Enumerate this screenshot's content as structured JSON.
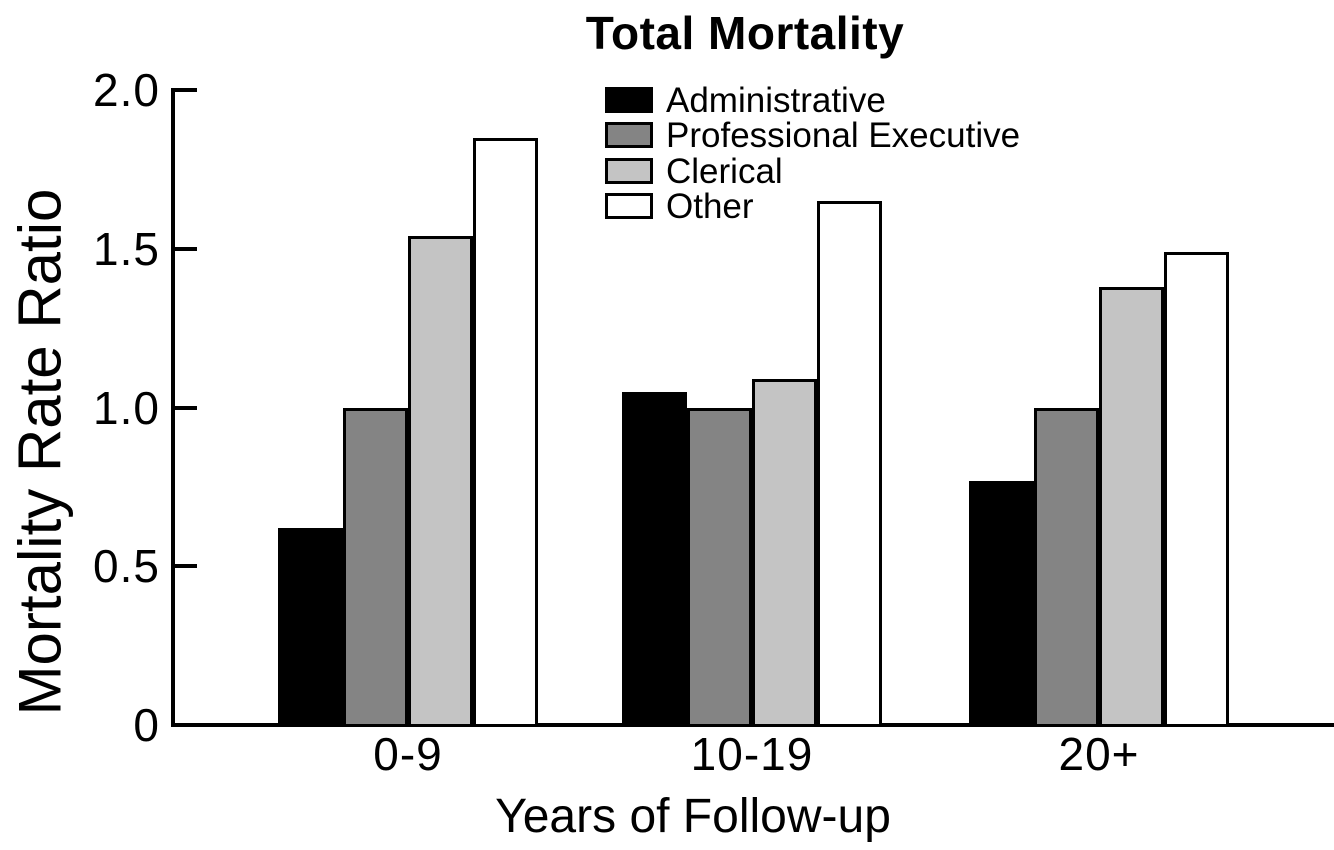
{
  "chart_data": {
    "type": "bar",
    "title": "Total Mortality",
    "xlabel": "Years of Follow-up",
    "ylabel": "Mortality Rate Ratio",
    "categories": [
      "0-9",
      "10-19",
      "20+"
    ],
    "series": [
      {
        "name": "Administrative",
        "color": "#000000",
        "values": [
          0.62,
          1.05,
          0.77
        ]
      },
      {
        "name": "Professional Executive",
        "color": "#848484",
        "values": [
          1.0,
          1.0,
          1.0
        ]
      },
      {
        "name": "Clerical",
        "color": "#c4c4c4",
        "values": [
          1.54,
          1.09,
          1.38
        ]
      },
      {
        "name": "Other",
        "color": "#ffffff",
        "values": [
          1.85,
          1.65,
          1.49
        ]
      }
    ],
    "ylim": [
      0,
      2.0
    ],
    "yticks": [
      {
        "value": 2.0,
        "label": "2.0"
      },
      {
        "value": 1.5,
        "label": "1.5"
      },
      {
        "value": 1.0,
        "label": "1.0"
      },
      {
        "value": 0.5,
        "label": "0.5"
      },
      {
        "value": 0.0,
        "label": "0"
      }
    ],
    "grid": false,
    "legend_position": "top-center-inside",
    "axis_color": "#000000",
    "bar_outline_color": "#000000",
    "background_color": "#ffffff"
  }
}
